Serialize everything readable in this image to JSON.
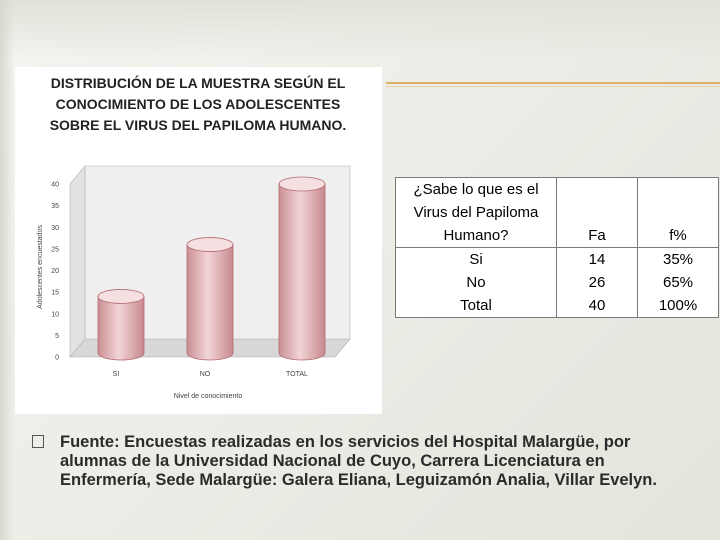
{
  "chart_data": {
    "type": "bar",
    "title_lines": [
      "DISTRIBUCIÓN DE LA MUESTRA SEGÚN EL",
      "CONOCIMIENTO DE LOS ADOLESCENTES",
      "SOBRE EL VIRUS DEL PAPILOMA HUMANO."
    ],
    "categories": [
      "SI",
      "NO",
      "TOTAL"
    ],
    "values": [
      14,
      26,
      40
    ],
    "xlabel": "Nivel de conocimiento",
    "ylabel": "Adolescentes encuestados",
    "ylim": [
      0,
      40
    ],
    "yticks": [
      "0",
      "5",
      "10",
      "15",
      "20",
      "25",
      "30",
      "35",
      "40"
    ],
    "bar_color": "#e3b5b8",
    "grid": false
  },
  "table": {
    "question": "¿Sabe lo que es el Virus del Papiloma Humano?",
    "fa_header": "Fa",
    "pct_header": "f%",
    "rows": [
      {
        "label": "Si",
        "fa": "14",
        "pct": "35%"
      },
      {
        "label": "No",
        "fa": "26",
        "pct": "65%"
      },
      {
        "label": "Total",
        "fa": "40",
        "pct": "100%"
      }
    ]
  },
  "source": "Fuente: Encuestas realizadas en los servicios del Hospital Malargüe, por alumnas de la Universidad Nacional de Cuyo, Carrera  Licenciatura  en Enfermería, Sede Malargüe: Galera Eliana, Leguizamón Analia, Villar Evelyn.",
  "bullet_icon": "square-bullet-icon"
}
